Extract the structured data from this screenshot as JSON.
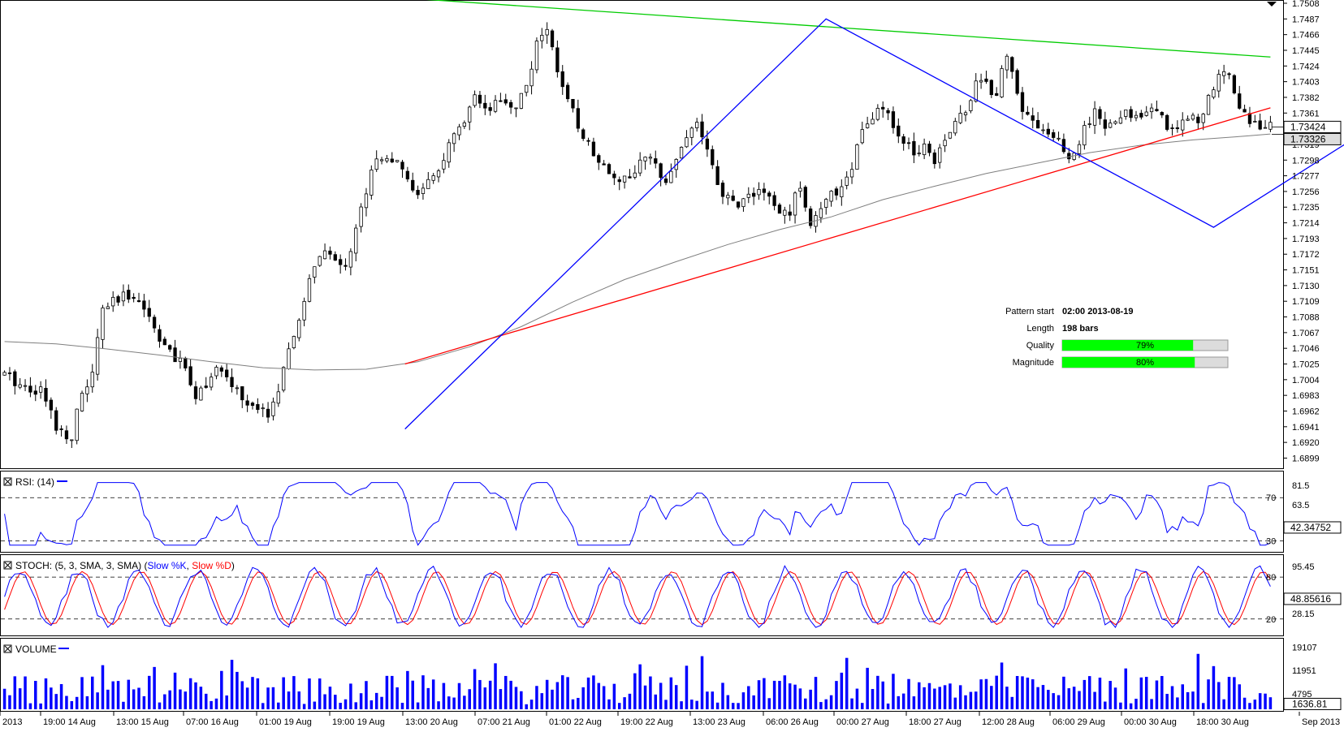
{
  "colors": {
    "candle": "#000000",
    "sma": "#7f7f7f",
    "support": "#ff0000",
    "resistance": "#00cc00",
    "zigzag": "#0000ff",
    "rsi": "#0000ff",
    "stoch_k": "#0000ff",
    "stoch_d": "#ff0000",
    "volume": "#0000ff",
    "quality_fill": "#00ff00",
    "bar_bg": "#dcdcdc"
  },
  "chart_data": [
    {
      "type": "candlestick",
      "title": "",
      "instrument": "",
      "y_ticks": [
        "1.7508",
        "1.7487",
        "1.7466",
        "1.7445",
        "1.7424",
        "1.7403",
        "1.7382",
        "1.7361",
        "1.7340",
        "1.7319",
        "1.7298",
        "1.7277",
        "1.7256",
        "1.7235",
        "1.7214",
        "1.7193",
        "1.7172",
        "1.7151",
        "1.7130",
        "1.7109",
        "1.7088",
        "1.7067",
        "1.7046",
        "1.7025",
        "1.7004",
        "1.6983",
        "1.6962",
        "1.6941",
        "1.6920",
        "1.6899"
      ],
      "ylim": [
        1.6893,
        1.7508
      ],
      "x_labels": [
        "2013",
        "19:00 14 Aug",
        "13:00 15 Aug",
        "07:00 16 Aug",
        "01:00 19 Aug",
        "19:00 19 Aug",
        "13:00 20 Aug",
        "07:00 21 Aug",
        "01:00 22 Aug",
        "19:00 22 Aug",
        "13:00 23 Aug",
        "06:00 26 Aug",
        "00:00 27 Aug",
        "18:00 27 Aug",
        "12:00 28 Aug",
        "06:00 29 Aug",
        "00:00 30 Aug",
        "18:00 30 Aug",
        "Sep 2013"
      ],
      "price_labels": [
        "1.73424",
        "1.73326"
      ],
      "bars": 248,
      "anchor_closes": [
        [
          0,
          1.701
        ],
        [
          8,
          1.6995
        ],
        [
          14,
          1.699
        ],
        [
          18,
          1.696
        ],
        [
          21,
          1.6935
        ],
        [
          26,
          1.693
        ],
        [
          30,
          1.6985
        ],
        [
          34,
          1.701
        ],
        [
          38,
          1.71
        ],
        [
          44,
          1.711
        ],
        [
          50,
          1.712
        ],
        [
          54,
          1.71
        ],
        [
          58,
          1.7075
        ],
        [
          62,
          1.705
        ],
        [
          66,
          1.703
        ],
        [
          70,
          1.702
        ],
        [
          74,
          1.6985
        ],
        [
          78,
          1.7
        ],
        [
          82,
          1.7015
        ],
        [
          86,
          1.7005
        ],
        [
          90,
          1.699
        ],
        [
          94,
          1.697
        ],
        [
          98,
          1.696
        ],
        [
          102,
          1.696
        ],
        [
          106,
          1.699
        ],
        [
          108,
          1.7015
        ],
        [
          112,
          1.706
        ],
        [
          116,
          1.711
        ],
        [
          120,
          1.716
        ],
        [
          124,
          1.717
        ],
        [
          128,
          1.7165
        ],
        [
          132,
          1.716
        ],
        [
          134,
          1.718
        ],
        [
          138,
          1.723
        ],
        [
          142,
          1.729
        ],
        [
          146,
          1.7305
        ],
        [
          150,
          1.73
        ],
        [
          154,
          1.728
        ],
        [
          158,
          1.726
        ],
        [
          162,
          1.7255
        ],
        [
          166,
          1.7275
        ],
        [
          170,
          1.73
        ],
        [
          174,
          1.733
        ],
        [
          178,
          1.7345
        ],
        [
          182,
          1.738
        ],
        [
          186,
          1.736
        ],
        [
          190,
          1.737
        ],
        [
          194,
          1.7375
        ],
        [
          198,
          1.737
        ],
        [
          202,
          1.74
        ],
        [
          206,
          1.745
        ],
        [
          210,
          1.7475
        ],
        [
          213,
          1.744
        ],
        [
          216,
          1.739
        ],
        [
          220,
          1.736
        ],
        [
          224,
          1.733
        ],
        [
          228,
          1.731
        ],
        [
          232,
          1.729
        ],
        [
          236,
          1.728
        ],
        [
          240,
          1.727
        ],
        [
          244,
          1.7285
        ],
        [
          248,
          1.73
        ],
        [
          252,
          1.729
        ],
        [
          256,
          1.7275
        ],
        [
          260,
          1.73
        ],
        [
          264,
          1.733
        ],
        [
          268,
          1.735
        ],
        [
          272,
          1.731
        ],
        [
          276,
          1.726
        ],
        [
          280,
          1.7245
        ],
        [
          284,
          1.724
        ],
        [
          288,
          1.725
        ],
        [
          292,
          1.726
        ],
        [
          296,
          1.7245
        ],
        [
          300,
          1.7225
        ],
        [
          304,
          1.723
        ],
        [
          308,
          1.7265
        ],
        [
          312,
          1.7215
        ],
        [
          316,
          1.723
        ],
        [
          320,
          1.725
        ],
        [
          324,
          1.7265
        ],
        [
          328,
          1.729
        ],
        [
          332,
          1.734
        ],
        [
          336,
          1.735
        ],
        [
          340,
          1.737
        ],
        [
          344,
          1.734
        ],
        [
          348,
          1.732
        ],
        [
          352,
          1.731
        ],
        [
          356,
          1.732
        ],
        [
          360,
          1.73
        ],
        [
          364,
          1.733
        ],
        [
          368,
          1.735
        ],
        [
          372,
          1.736
        ],
        [
          376,
          1.741
        ],
        [
          380,
          1.74
        ],
        [
          384,
          1.738
        ],
        [
          387,
          1.7445
        ],
        [
          390,
          1.742
        ],
        [
          394,
          1.737
        ],
        [
          398,
          1.735
        ],
        [
          402,
          1.734
        ],
        [
          406,
          1.733
        ],
        [
          410,
          1.731
        ],
        [
          414,
          1.73
        ],
        [
          418,
          1.734
        ],
        [
          422,
          1.736
        ],
        [
          426,
          1.734
        ],
        [
          430,
          1.735
        ],
        [
          434,
          1.736
        ],
        [
          438,
          1.7355
        ],
        [
          442,
          1.737
        ],
        [
          446,
          1.736
        ],
        [
          450,
          1.7345
        ],
        [
          454,
          1.734
        ],
        [
          458,
          1.736
        ],
        [
          462,
          1.735
        ],
        [
          466,
          1.738
        ],
        [
          470,
          1.7405
        ],
        [
          474,
          1.742
        ],
        [
          478,
          1.737
        ],
        [
          482,
          1.735
        ],
        [
          486,
          1.7345
        ],
        [
          490,
          1.7342
        ]
      ],
      "sma_anchors": [
        [
          0,
          1.7055
        ],
        [
          20,
          1.7052
        ],
        [
          40,
          1.7045
        ],
        [
          60,
          1.7037
        ],
        [
          80,
          1.7028
        ],
        [
          100,
          1.702
        ],
        [
          120,
          1.7017
        ],
        [
          140,
          1.7018
        ],
        [
          160,
          1.7028
        ],
        [
          180,
          1.7048
        ],
        [
          200,
          1.7075
        ],
        [
          220,
          1.7108
        ],
        [
          240,
          1.7138
        ],
        [
          260,
          1.7162
        ],
        [
          280,
          1.7185
        ],
        [
          300,
          1.7205
        ],
        [
          320,
          1.7222
        ],
        [
          340,
          1.7245
        ],
        [
          360,
          1.7263
        ],
        [
          380,
          1.728
        ],
        [
          400,
          1.7294
        ],
        [
          420,
          1.7308
        ],
        [
          440,
          1.7318
        ],
        [
          460,
          1.7325
        ],
        [
          480,
          1.733
        ],
        [
          490,
          1.7333
        ]
      ],
      "support_line": {
        "from": [
          1.7025
        ],
        "to": [
          1.7368
        ]
      },
      "resistance_line": {
        "from": [
          1.7515
        ],
        "to": [
          1.7436
        ]
      },
      "zigzag": [
        1.6938,
        1.7487,
        1.7208,
        1.7453,
        1.7291
      ]
    },
    {
      "type": "line",
      "name": "RSI",
      "legend": "RSI: (14)",
      "ylim": [
        22,
        92
      ],
      "y_ticks": [
        "81.5",
        "70",
        "63.5",
        "30"
      ],
      "levels": [
        70,
        30
      ],
      "last_value": "42.34752"
    },
    {
      "type": "line",
      "name": "STOCH",
      "legend_prefix": "STOCH: (5, 3, SMA, 3, SMA) (",
      "k_label": "Slow %K",
      "d_label": "Slow %D",
      "legend_suffix": ")",
      "ylim": [
        0,
        108
      ],
      "y_ticks": [
        "95.45",
        "80",
        "28.15",
        "20"
      ],
      "levels": [
        80,
        20
      ],
      "last_value": "48.85616"
    },
    {
      "type": "bar",
      "name": "VOLUME",
      "legend": "VOLUME",
      "ylim": [
        0,
        21000
      ],
      "y_ticks": [
        "19107",
        "11951",
        "4795"
      ],
      "last_value": "1636.81"
    }
  ],
  "pattern_info": {
    "start_label": "Pattern start",
    "start_value": "02:00 2013-08-19",
    "length_label": "Length",
    "length_value": "198 bars",
    "quality_label": "Quality",
    "quality_value": "79%",
    "quality_pct": 79,
    "magnitude_label": "Magnitude",
    "magnitude_value": "80%",
    "magnitude_pct": 80
  }
}
